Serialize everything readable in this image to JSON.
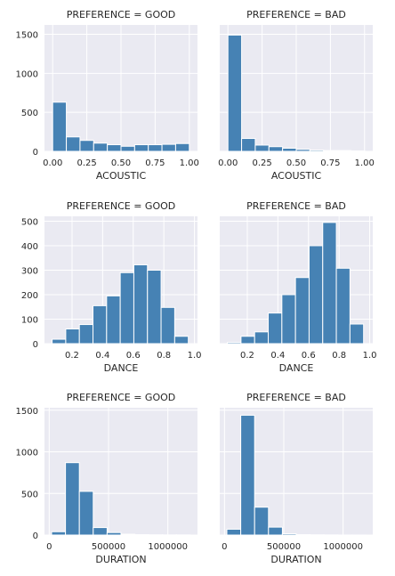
{
  "colors": {
    "bar": "#4682b4",
    "bar_edge": "#ffffff",
    "panel_bg": "#eaeaf2",
    "grid": "#ffffff",
    "text": "#262626"
  },
  "chart_data": [
    {
      "type": "bar",
      "row": 0,
      "col": 0,
      "title": "PREFERENCE = GOOD",
      "xlabel": "ACOUSTIC",
      "ylabel": "",
      "bin_edges": [
        0.0,
        0.1,
        0.2,
        0.3,
        0.4,
        0.5,
        0.6,
        0.7,
        0.8,
        0.9,
        1.0
      ],
      "values": [
        630,
        185,
        140,
        105,
        85,
        65,
        85,
        85,
        90,
        100
      ],
      "xlim": [
        -0.06,
        1.06
      ],
      "ylim": [
        0,
        1620
      ],
      "xticks": [
        0.0,
        0.25,
        0.5,
        0.75,
        1.0
      ],
      "xtick_labels": [
        "0.00",
        "0.25",
        "0.50",
        "0.75",
        "1.00"
      ],
      "yticks": [
        0,
        500,
        1000,
        1500
      ],
      "ytick_labels": [
        "0",
        "500",
        "1000",
        "1500"
      ],
      "show_yticks": true,
      "grid": true
    },
    {
      "type": "bar",
      "row": 0,
      "col": 1,
      "title": "PREFERENCE = BAD",
      "xlabel": "ACOUSTIC",
      "ylabel": "",
      "bin_edges": [
        0.0,
        0.1,
        0.2,
        0.3,
        0.4,
        0.5,
        0.6,
        0.7,
        0.8,
        0.9,
        1.0
      ],
      "values": [
        1490,
        165,
        80,
        60,
        40,
        25,
        15,
        10,
        10,
        5
      ],
      "xlim": [
        -0.06,
        1.06
      ],
      "ylim": [
        0,
        1620
      ],
      "xticks": [
        0.0,
        0.25,
        0.5,
        0.75,
        1.0
      ],
      "xtick_labels": [
        "0.00",
        "0.25",
        "0.50",
        "0.75",
        "1.00"
      ],
      "yticks": [
        0,
        500,
        1000,
        1500
      ],
      "ytick_labels": [
        "",
        "",
        "",
        ""
      ],
      "show_yticks": false,
      "grid": true
    },
    {
      "type": "bar",
      "row": 1,
      "col": 0,
      "title": "PREFERENCE = GOOD",
      "xlabel": "DANCE",
      "ylabel": "",
      "bin_edges": [
        0.07,
        0.159,
        0.248,
        0.337,
        0.426,
        0.515,
        0.604,
        0.693,
        0.782,
        0.871,
        0.96
      ],
      "values": [
        18,
        60,
        78,
        155,
        195,
        290,
        322,
        300,
        148,
        30
      ],
      "xlim": [
        0.02,
        1.02
      ],
      "ylim": [
        0,
        520
      ],
      "xticks": [
        0.2,
        0.4,
        0.6,
        0.8,
        1.0
      ],
      "xtick_labels": [
        "0.2",
        "0.4",
        "0.6",
        "0.8",
        "1.0"
      ],
      "yticks": [
        0,
        100,
        200,
        300,
        400,
        500
      ],
      "ytick_labels": [
        "0",
        "100",
        "200",
        "300",
        "400",
        "500"
      ],
      "show_yticks": true,
      "grid": true
    },
    {
      "type": "bar",
      "row": 1,
      "col": 1,
      "title": "PREFERENCE = BAD",
      "xlabel": "DANCE",
      "ylabel": "",
      "bin_edges": [
        0.07,
        0.159,
        0.248,
        0.337,
        0.426,
        0.515,
        0.604,
        0.693,
        0.782,
        0.871,
        0.96
      ],
      "values": [
        5,
        30,
        48,
        125,
        200,
        270,
        400,
        495,
        308,
        80
      ],
      "xlim": [
        0.02,
        1.02
      ],
      "ylim": [
        0,
        520
      ],
      "xticks": [
        0.2,
        0.4,
        0.6,
        0.8,
        1.0
      ],
      "xtick_labels": [
        "0.2",
        "0.4",
        "0.6",
        "0.8",
        "1.0"
      ],
      "yticks": [
        0,
        100,
        200,
        300,
        400,
        500
      ],
      "ytick_labels": [
        "",
        "",
        "",
        "",
        "",
        ""
      ],
      "show_yticks": false,
      "grid": true
    },
    {
      "type": "bar",
      "row": 2,
      "col": 0,
      "title": "PREFERENCE = GOOD",
      "xlabel": "DURATION",
      "ylabel": "",
      "bin_edges": [
        20000,
        137000,
        254000,
        371000,
        488000,
        605000,
        722000,
        839000,
        956000,
        1073000,
        1190000
      ],
      "values": [
        40,
        870,
        525,
        90,
        30,
        10,
        5,
        3,
        2,
        2
      ],
      "xlim": [
        -40000,
        1250000
      ],
      "ylim": [
        0,
        1530
      ],
      "xticks": [
        0,
        500000,
        1000000
      ],
      "xtick_labels": [
        "0",
        "500000",
        "1000000"
      ],
      "yticks": [
        0,
        500,
        1000,
        1500
      ],
      "ytick_labels": [
        "0",
        "500",
        "1000",
        "1500"
      ],
      "show_yticks": true,
      "grid": true
    },
    {
      "type": "bar",
      "row": 2,
      "col": 1,
      "title": "PREFERENCE = BAD",
      "xlabel": "DURATION",
      "ylabel": "",
      "bin_edges": [
        20000,
        137000,
        254000,
        371000,
        488000,
        605000,
        722000,
        839000,
        956000,
        1073000,
        1190000
      ],
      "values": [
        70,
        1440,
        335,
        95,
        15,
        5,
        3,
        2,
        1,
        1
      ],
      "xlim": [
        -40000,
        1250000
      ],
      "ylim": [
        0,
        1530
      ],
      "xticks": [
        0,
        500000,
        1000000
      ],
      "xtick_labels": [
        "0",
        "500000",
        "1000000"
      ],
      "yticks": [
        0,
        500,
        1000,
        1500
      ],
      "ytick_labels": [
        "",
        "",
        "",
        ""
      ],
      "show_yticks": false,
      "grid": true
    }
  ]
}
